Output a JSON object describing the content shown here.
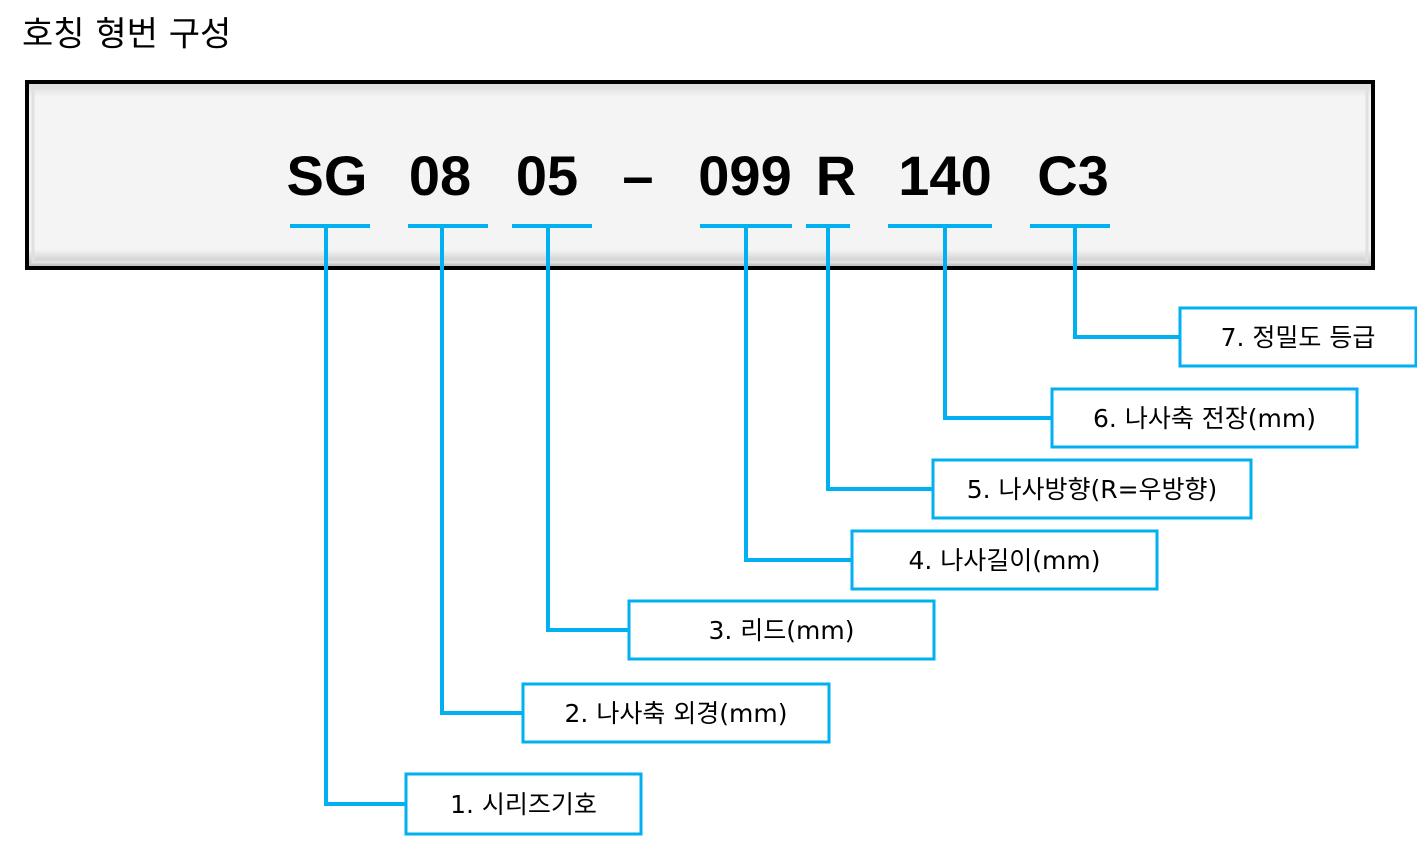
{
  "title": "호칭 형번 구성",
  "code_parts": [
    "SG",
    "08",
    "05",
    "–",
    "099",
    "R",
    "140",
    "C3"
  ],
  "labels": [
    "1. 시리즈기호",
    "2. 나사축 외경(mm)",
    "3. 리드(mm)",
    "4. 나사길이(mm)",
    "5. 나사방향(R=우방향)",
    "6. 나사축 전장(mm)",
    "7. 정밀도 등급"
  ]
}
